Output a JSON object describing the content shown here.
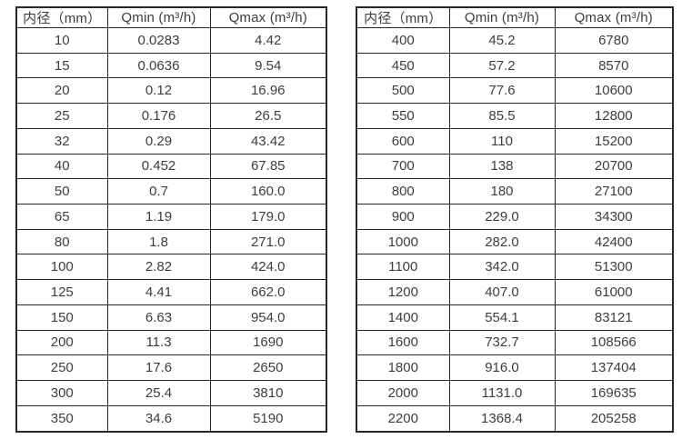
{
  "headers": [
    "内径（mm）",
    "Qmin (m³/h)",
    "Qmax (m³/h)"
  ],
  "colors": {
    "background": "#ffffff",
    "text": "#3d3d3d",
    "border": "#262626"
  },
  "left_table": {
    "rows": [
      [
        "10",
        "0.0283",
        "4.42"
      ],
      [
        "15",
        "0.0636",
        "9.54"
      ],
      [
        "20",
        "0.12",
        "16.96"
      ],
      [
        "25",
        "0.176",
        "26.5"
      ],
      [
        "32",
        "0.29",
        "43.42"
      ],
      [
        "40",
        "0.452",
        "67.85"
      ],
      [
        "50",
        "0.7",
        "160.0"
      ],
      [
        "65",
        "1.19",
        "179.0"
      ],
      [
        "80",
        "1.8",
        "271.0"
      ],
      [
        "100",
        "2.82",
        "424.0"
      ],
      [
        "125",
        "4.41",
        "662.0"
      ],
      [
        "150",
        "6.63",
        "954.0"
      ],
      [
        "200",
        "11.3",
        "1690"
      ],
      [
        "250",
        "17.6",
        "2650"
      ],
      [
        "300",
        "25.4",
        "3810"
      ],
      [
        "350",
        "34.6",
        "5190"
      ]
    ]
  },
  "right_table": {
    "rows": [
      [
        "400",
        "45.2",
        "6780"
      ],
      [
        "450",
        "57.2",
        "8570"
      ],
      [
        "500",
        "77.6",
        "10600"
      ],
      [
        "550",
        "85.5",
        "12800"
      ],
      [
        "600",
        "110",
        "15200"
      ],
      [
        "700",
        "138",
        "20700"
      ],
      [
        "800",
        "180",
        "27100"
      ],
      [
        "900",
        "229.0",
        "34300"
      ],
      [
        "1000",
        "282.0",
        "42400"
      ],
      [
        "1100",
        "342.0",
        "51300"
      ],
      [
        "1200",
        "407.0",
        "61000"
      ],
      [
        "1400",
        "554.1",
        "83121"
      ],
      [
        "1600",
        "732.7",
        "108566"
      ],
      [
        "1800",
        "916.0",
        "137404"
      ],
      [
        "2000",
        "1131.0",
        "169635"
      ],
      [
        "2200",
        "1368.4",
        "205258"
      ]
    ]
  }
}
